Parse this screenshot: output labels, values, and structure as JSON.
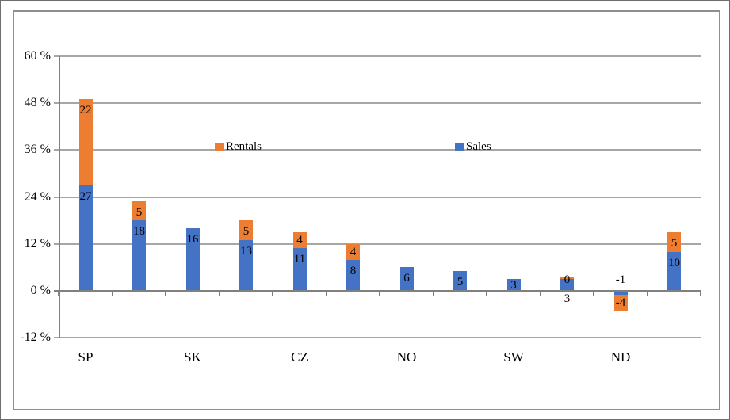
{
  "chart_data": {
    "type": "bar",
    "stacked": true,
    "title": "",
    "xlabel": "",
    "ylabel": "",
    "num_slots": 12,
    "categories": [
      "SP",
      "SK",
      "CZ",
      "NO",
      "SW",
      "ND"
    ],
    "category_slot_indices": [
      0,
      2,
      4,
      6,
      8,
      10
    ],
    "series": [
      {
        "name": "Sales",
        "color": "#4472C4",
        "values": [
          27,
          18,
          16,
          13,
          11,
          8,
          6,
          5,
          3,
          3,
          -1,
          10
        ]
      },
      {
        "name": "Rentals",
        "color": "#ED7D31",
        "values": [
          22,
          5,
          null,
          5,
          4,
          4,
          null,
          null,
          null,
          0,
          -4,
          5
        ]
      }
    ],
    "y_axis": {
      "ticks": [
        60,
        48,
        36,
        24,
        12,
        0,
        -12
      ],
      "tick_labels": [
        "60 %",
        "48 %",
        "36 %",
        "24 %",
        "12 %",
        "0 %",
        "-12 %"
      ],
      "ylim": [
        -12,
        60
      ],
      "unit": "%"
    },
    "grid": true,
    "legend": {
      "position": "inside-plot-mid-height",
      "items": [
        {
          "label": "Rentals",
          "color": "#ED7D31"
        },
        {
          "label": "Sales",
          "color": "#4472C4"
        }
      ]
    }
  },
  "colors": {
    "sales": "#4472C4",
    "rentals": "#ED7D31",
    "gridline": "#a6a6a6",
    "axis": "#808080",
    "frame": "#8f8f8f",
    "text": "#000000"
  }
}
